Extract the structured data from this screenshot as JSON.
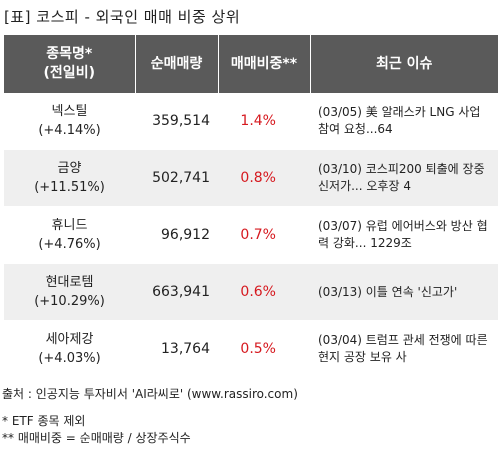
{
  "title": "[표] 코스피 - 외국인 매매 비중 상위",
  "headers": {
    "name_line1": "종목명*",
    "name_line2": "(전일비)",
    "volume": "순매매량",
    "ratio": "매매비중**",
    "issue": "최근 이슈"
  },
  "rows": [
    {
      "name": "넥스틸",
      "change": "(+4.14%)",
      "volume": "359,514",
      "ratio": "1.4%",
      "issue": "(03/05) 美 알래스카 LNG 사업 참여 요청...64"
    },
    {
      "name": "금양",
      "change": "(+11.51%)",
      "volume": "502,741",
      "ratio": "0.8%",
      "issue": "(03/10) 코스피200 퇴출에 장중 신저가... 오후장 4"
    },
    {
      "name": "휴니드",
      "change": "(+4.76%)",
      "volume": "96,912",
      "ratio": "0.7%",
      "issue": "(03/07) 유럽 에어버스와 방산 협력 강화... 1229조"
    },
    {
      "name": "현대로템",
      "change": "(+10.29%)",
      "volume": "663,941",
      "ratio": "0.6%",
      "issue": "(03/13) 이틀 연속 '신고가'"
    },
    {
      "name": "세아제강",
      "change": "(+4.03%)",
      "volume": "13,764",
      "ratio": "0.5%",
      "issue": "(03/04) 트럼프 관세 전쟁에 따른 현지 공장 보유 사"
    }
  ],
  "source": "출처 : 인공지능 투자비서 'AI라씨로' (www.rassiro.com)",
  "note_etf": "* ETF 종목 제외",
  "note_ratio": "** 매매비중 = 순매매량 / 상장주식수",
  "colors": {
    "header_bg": "#5a5a5a",
    "ratio_text": "#d6191f",
    "row_alt_bg": "#efefef"
  }
}
